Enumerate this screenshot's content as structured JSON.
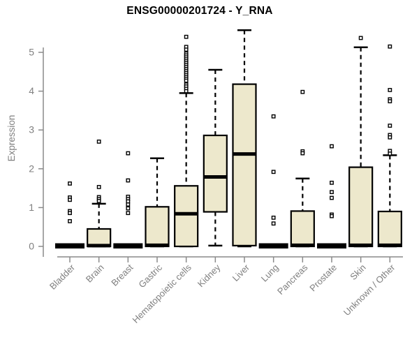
{
  "title": "ENSG00000201724 - Y_RNA",
  "chart_data": {
    "type": "boxplot",
    "title": "ENSG00000201724 - Y_RNA",
    "xlabel": "",
    "ylabel": "Expression",
    "ylim": [
      0,
      5.6
    ],
    "yticks": [
      0,
      1,
      2,
      3,
      4,
      5
    ],
    "grid": false,
    "legend": false,
    "categories": [
      "Bladder",
      "Brain",
      "Breast",
      "Gastric",
      "Hematopoietic cells",
      "Kidney",
      "Liver",
      "Lung",
      "Pancreas",
      "Prostate",
      "Skin",
      "Unknown / Other"
    ],
    "boxes": [
      {
        "label": "Bladder",
        "flat": true,
        "q1": 0,
        "median": 0.02,
        "q3": 0.04,
        "whisker_low": 0,
        "whisker_high": 0.04,
        "outliers": [
          1.62,
          1.26,
          1.2,
          0.91,
          0.86,
          0.65
        ]
      },
      {
        "label": "Brain",
        "flat": false,
        "q1": 0,
        "median": 0.02,
        "q3": 0.45,
        "whisker_low": 0,
        "whisker_high": 1.1,
        "outliers": [
          2.7,
          1.53,
          1.27,
          1.22,
          1.17
        ]
      },
      {
        "label": "Breast",
        "flat": true,
        "q1": 0,
        "median": 0.02,
        "q3": 0.04,
        "whisker_low": 0,
        "whisker_high": 0.04,
        "outliers": [
          2.4,
          1.7,
          1.28,
          1.22,
          1.16,
          1.08,
          0.98,
          0.86
        ]
      },
      {
        "label": "Gastric",
        "flat": false,
        "q1": 0,
        "median": 0.03,
        "q3": 1.02,
        "whisker_low": 0,
        "whisker_high": 2.27,
        "outliers": []
      },
      {
        "label": "Hematopoietic cells",
        "flat": false,
        "q1": 0,
        "median": 0.84,
        "q3": 1.56,
        "whisker_low": 0,
        "whisker_high": 3.95,
        "outliers": [
          5.4,
          5.14,
          5.07,
          4.97,
          4.92,
          4.87,
          4.82,
          4.77,
          4.72,
          4.67,
          4.62,
          4.57,
          4.52,
          4.47,
          4.42,
          4.37,
          4.32,
          4.27,
          4.17,
          4.12,
          4.06,
          4.0
        ]
      },
      {
        "label": "Kidney",
        "flat": false,
        "q1": 0.89,
        "median": 1.79,
        "q3": 2.86,
        "whisker_low": 0.02,
        "whisker_high": 4.55,
        "outliers": []
      },
      {
        "label": "Liver",
        "flat": false,
        "q1": 0.02,
        "median": 2.38,
        "q3": 4.18,
        "whisker_low": 0,
        "whisker_high": 5.57,
        "outliers": []
      },
      {
        "label": "Lung",
        "flat": true,
        "q1": 0,
        "median": 0.02,
        "q3": 0.04,
        "whisker_low": 0,
        "whisker_high": 0.04,
        "outliers": [
          3.35,
          1.92,
          0.74,
          0.59
        ]
      },
      {
        "label": "Pancreas",
        "flat": false,
        "q1": 0,
        "median": 0.03,
        "q3": 0.91,
        "whisker_low": 0,
        "whisker_high": 1.75,
        "outliers": [
          3.98,
          2.45,
          2.4
        ]
      },
      {
        "label": "Prostate",
        "flat": true,
        "q1": 0,
        "median": 0.02,
        "q3": 0.04,
        "whisker_low": 0,
        "whisker_high": 0.04,
        "outliers": [
          2.58,
          1.64,
          1.4,
          1.25,
          0.82,
          0.78
        ]
      },
      {
        "label": "Skin",
        "flat": false,
        "q1": 0,
        "median": 0.03,
        "q3": 2.04,
        "whisker_low": 0,
        "whisker_high": 5.13,
        "outliers": [
          5.37
        ]
      },
      {
        "label": "Unknown / Other",
        "flat": false,
        "q1": 0,
        "median": 0.03,
        "q3": 0.9,
        "whisker_low": 0,
        "whisker_high": 2.35,
        "outliers": [
          5.15,
          4.03,
          3.79,
          3.74,
          3.11,
          2.87,
          2.81,
          2.46,
          2.39
        ]
      }
    ],
    "colors": {
      "box_fill": "#ede8cc",
      "box_stroke": "#000000",
      "axis": "#8a8a8a",
      "tick_label": "#7f7f7f",
      "title": "#000000"
    }
  }
}
